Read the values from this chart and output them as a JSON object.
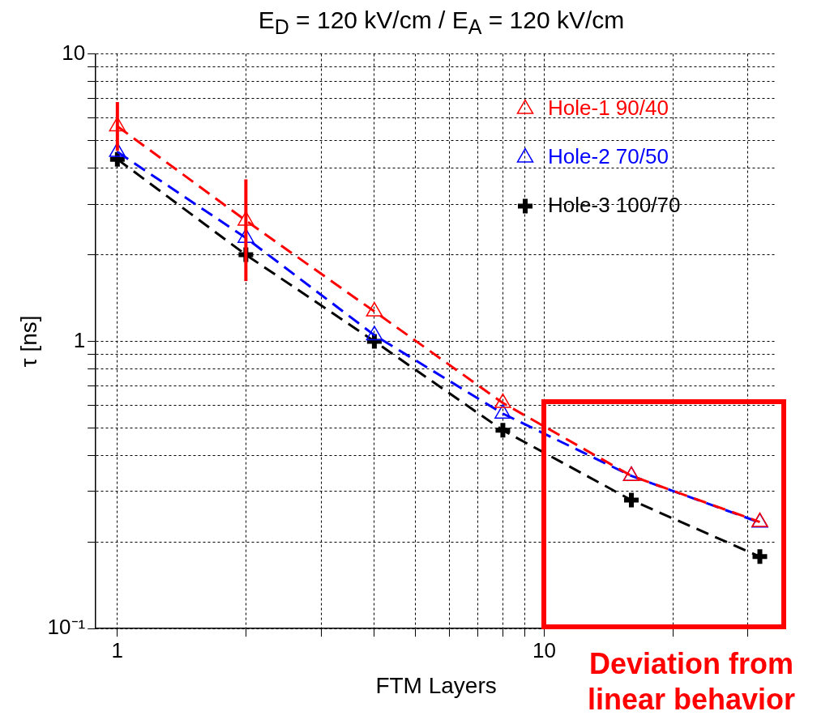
{
  "chart_data": {
    "type": "line",
    "title": "E$_{D}$ = 120 kV/cm / E$_{A}$ = 120 kV/cm",
    "xlabel": "FTM Layers",
    "ylabel": "τ [ns]",
    "x": [
      1,
      2,
      4,
      8,
      16,
      32
    ],
    "series": [
      {
        "name": "Hole-1 90/40",
        "color": "#ff0000",
        "marker": "triangle",
        "line_style": "dashed",
        "values": [
          5.6,
          2.63,
          1.27,
          0.61,
          0.34,
          0.235
        ],
        "errors": [
          [
            4.6,
            6.8
          ],
          [
            1.62,
            3.66
          ],
          null,
          null,
          null,
          null
        ]
      },
      {
        "name": "Hole-2 70/50",
        "color": "#0000ff",
        "marker": "triangle",
        "line_style": "dashed",
        "values": [
          4.56,
          2.29,
          1.05,
          0.56,
          0.34,
          0.234
        ]
      },
      {
        "name": "Hole-3 100/70",
        "color": "#000000",
        "marker": "cross",
        "line_style": "dashed",
        "values": [
          4.3,
          2.0,
          1.0,
          0.49,
          0.28,
          0.178
        ]
      }
    ],
    "log": "xy",
    "xlim": [
      0.89,
      35
    ],
    "ylim": [
      0.1,
      10
    ],
    "xticks": [
      1,
      {
        "value": 2,
        "label": null
      },
      {
        "value": 3,
        "label": null
      },
      {
        "value": 4,
        "label": null
      },
      {
        "value": 5,
        "label": null
      },
      {
        "value": 6,
        "label": null
      },
      {
        "value": 7,
        "label": null
      },
      {
        "value": 8,
        "label": null
      },
      {
        "value": 9,
        "label": null
      },
      10,
      {
        "value": 20,
        "label": null
      },
      {
        "value": 30,
        "label": null
      }
    ],
    "yticks": [
      {
        "value": 0.1,
        "label": "10⁻¹"
      },
      {
        "value": 0.2,
        "label": null
      },
      {
        "value": 0.3,
        "label": null
      },
      {
        "value": 0.4,
        "label": null
      },
      {
        "value": 0.5,
        "label": null
      },
      {
        "value": 0.6,
        "label": null
      },
      {
        "value": 0.7,
        "label": null
      },
      {
        "value": 0.8,
        "label": null
      },
      {
        "value": 0.9,
        "label": null
      },
      1,
      {
        "value": 2,
        "label": null
      },
      {
        "value": 3,
        "label": null
      },
      {
        "value": 4,
        "label": null
      },
      {
        "value": 5,
        "label": null
      },
      {
        "value": 6,
        "label": null
      },
      {
        "value": 7,
        "label": null
      },
      {
        "value": 8,
        "label": null
      },
      {
        "value": 9,
        "label": null
      },
      10
    ],
    "grid": true,
    "legend": "top right",
    "annotations": [
      "Deviation from linear behavior"
    ]
  }
}
